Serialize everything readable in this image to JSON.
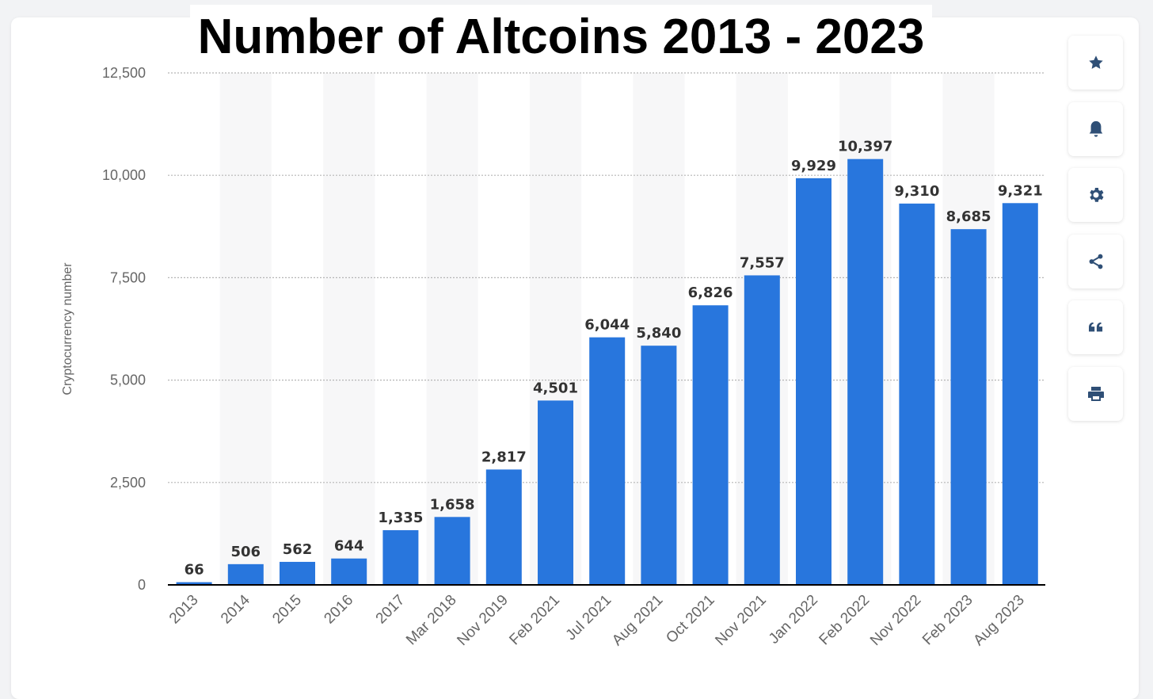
{
  "chart_data": {
    "type": "bar",
    "title": "Number of Altcoins 2013 - 2023",
    "xlabel": "",
    "ylabel": "Cryptocurrency number",
    "ylim": [
      0,
      12500
    ],
    "yticks": [
      0,
      2500,
      5000,
      7500,
      10000,
      12500
    ],
    "ytick_labels": [
      "0",
      "2,500",
      "5,000",
      "7,500",
      "10,000",
      "12,500"
    ],
    "categories": [
      "2013",
      "2014",
      "2015",
      "2016",
      "2017",
      "Mar 2018",
      "Nov 2019",
      "Feb 2021",
      "Jul 2021",
      "Aug 2021",
      "Oct 2021",
      "Nov 2021",
      "Jan 2022",
      "Feb 2022",
      "Nov 2022",
      "Feb 2023",
      "Aug 2023"
    ],
    "values": [
      66,
      506,
      562,
      644,
      1335,
      1658,
      2817,
      4501,
      6044,
      5840,
      6826,
      7557,
      9929,
      10397,
      9310,
      8685,
      9321
    ],
    "value_labels": [
      "66",
      "506",
      "562",
      "644",
      "1,335",
      "1,658",
      "2,817",
      "4,501",
      "6,044",
      "5,840",
      "6,826",
      "7,557",
      "9,929",
      "10,397",
      "9,310",
      "8,685",
      "9,321"
    ],
    "grid": true,
    "legend": "none",
    "colors": {
      "bar": "#2876dd",
      "stripe": "#f7f7f8",
      "grid": "#b5b5b5",
      "axis": "#000000",
      "tick_text": "#666666",
      "value_text": "#333333"
    }
  },
  "toolbar": {
    "icon_color": "#2f4f76",
    "buttons": [
      {
        "icon": "star-icon",
        "name": "favorite-button"
      },
      {
        "icon": "bell-icon",
        "name": "notification-button"
      },
      {
        "icon": "gear-icon",
        "name": "settings-button"
      },
      {
        "icon": "share-icon",
        "name": "share-button"
      },
      {
        "icon": "quote-icon",
        "name": "cite-button"
      },
      {
        "icon": "print-icon",
        "name": "print-button"
      }
    ]
  }
}
